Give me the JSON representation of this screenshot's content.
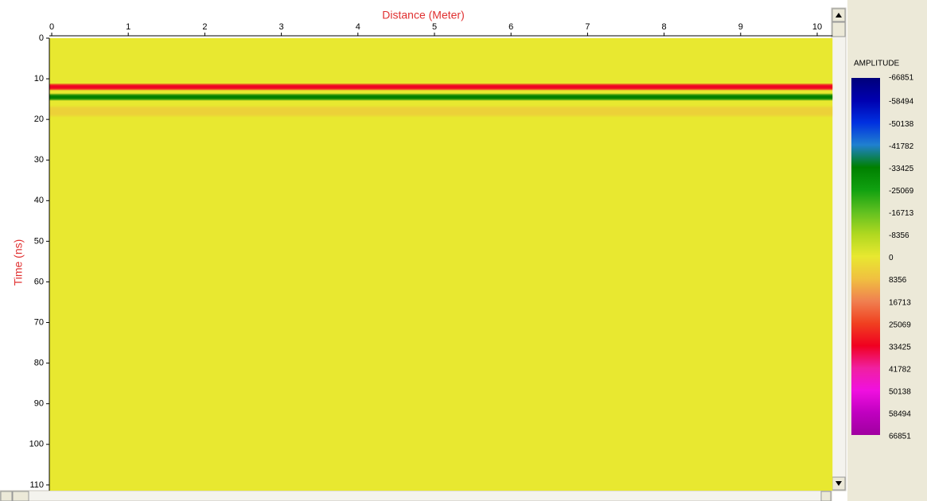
{
  "chart_data": {
    "type": "radargram",
    "x_label": "Distance (Meter)",
    "y_label": "Time (ns)",
    "xlim": [
      0,
      10.2
    ],
    "xticks": [
      0,
      1,
      2,
      3,
      4,
      5,
      6,
      7,
      8,
      9,
      10
    ],
    "ylim": [
      0,
      111.4
    ],
    "yticks": [
      0,
      10,
      20,
      30,
      40,
      50,
      60,
      70,
      80,
      90,
      100,
      110
    ],
    "background_amplitude": 0,
    "reflections": {
      "time": [
        12,
        14.5,
        18
      ],
      "amplitude": [
        33425,
        -33425,
        8356
      ]
    },
    "colorbar": {
      "title": "AMPLITUDE",
      "ticks": [
        -66851,
        -58494,
        -50138,
        -41782,
        -33425,
        -25069,
        -16713,
        -8356,
        0,
        8356,
        16713,
        25069,
        33425,
        41782,
        50138,
        58494,
        66851
      ],
      "colors": [
        "#00007a",
        "#0000b0",
        "#0030e0",
        "#2080d0",
        "#008000",
        "#10a010",
        "#60c020",
        "#b0d820",
        "#e8e830",
        "#f0c040",
        "#f08050",
        "#f04020",
        "#f00020",
        "#f020a0",
        "#f010e0",
        "#c000c0",
        "#a000a0"
      ]
    }
  }
}
